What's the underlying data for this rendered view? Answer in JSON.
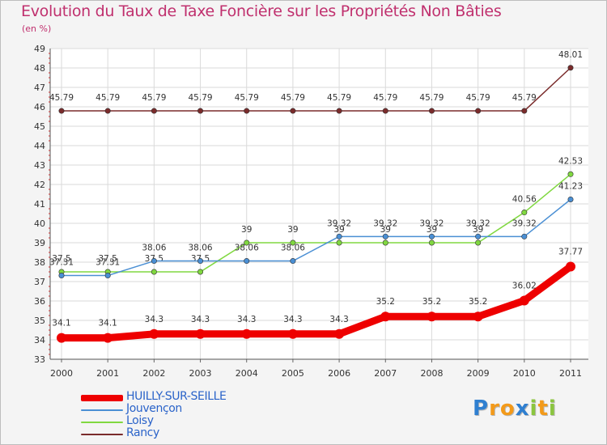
{
  "title": "Evolution du Taux de Taxe Foncière sur les Propriétés Non Bâties",
  "unit": "(en %)",
  "chart_data": {
    "type": "line",
    "title": "Evolution du Taux de Taxe Foncière sur les Propriétés Non Bâties",
    "ylabel": "(en %)",
    "xlabel": "",
    "ylim": [
      33,
      49
    ],
    "yticks": [
      33,
      34,
      35,
      36,
      37,
      38,
      39,
      40,
      41,
      42,
      43,
      44,
      45,
      46,
      47,
      48,
      49
    ],
    "categories": [
      "2000",
      "2001",
      "2002",
      "2003",
      "2004",
      "2005",
      "2006",
      "2007",
      "2008",
      "2009",
      "2010",
      "2011"
    ],
    "series": [
      {
        "name": "HUILLY-SUR-SEILLE",
        "color": "#ee0000",
        "values": [
          34.1,
          34.1,
          34.3,
          34.3,
          34.3,
          34.3,
          34.3,
          35.2,
          35.2,
          35.2,
          36.02,
          37.77
        ],
        "labels": [
          "34.1",
          "34.1",
          "34.3",
          "34.3",
          "34.3",
          "34.3",
          "34.3",
          "35.2",
          "35.2",
          "35.2",
          "36.02",
          "37.77"
        ]
      },
      {
        "name": "Jouvençon",
        "color": "#4a8fd4",
        "values": [
          37.31,
          37.31,
          38.06,
          38.06,
          38.06,
          38.06,
          39.32,
          39.32,
          39.32,
          39.32,
          39.32,
          41.23
        ],
        "labels": [
          "37.31",
          "37.31",
          "38.06",
          "38.06",
          "38.06",
          "38.06",
          "39.32",
          "39.32",
          "39.32",
          "39.32",
          "39.32",
          "41.23"
        ]
      },
      {
        "name": "Loisy",
        "color": "#80d840",
        "values": [
          37.5,
          37.5,
          37.5,
          37.5,
          39,
          39,
          39,
          39,
          39,
          39,
          40.56,
          42.53
        ],
        "labels": [
          "37.5",
          "37.5",
          "37.5",
          "37.5",
          "39",
          "39",
          "39",
          "39",
          "39",
          "39",
          "40.56",
          "42.53"
        ]
      },
      {
        "name": "Rancy",
        "color": "#7a2b2b",
        "values": [
          45.79,
          45.79,
          45.79,
          45.79,
          45.79,
          45.79,
          45.79,
          45.79,
          45.79,
          45.79,
          45.79,
          48.01
        ],
        "labels": [
          "45.79",
          "45.79",
          "45.79",
          "45.79",
          "45.79",
          "45.79",
          "45.79",
          "45.79",
          "45.79",
          "45.79",
          "45.79",
          "48.01"
        ]
      }
    ]
  },
  "logo": {
    "text": "Proxiti",
    "letters": [
      {
        "ch": "P",
        "color": "#2f7fd0"
      },
      {
        "ch": "r",
        "color": "#f39a1a"
      },
      {
        "ch": "o",
        "color": "#f39a1a"
      },
      {
        "ch": "x",
        "color": "#2f7fd0"
      },
      {
        "ch": "i",
        "color": "#8bc53f"
      },
      {
        "ch": "t",
        "color": "#f39a1a"
      },
      {
        "ch": "i",
        "color": "#8bc53f"
      }
    ]
  }
}
